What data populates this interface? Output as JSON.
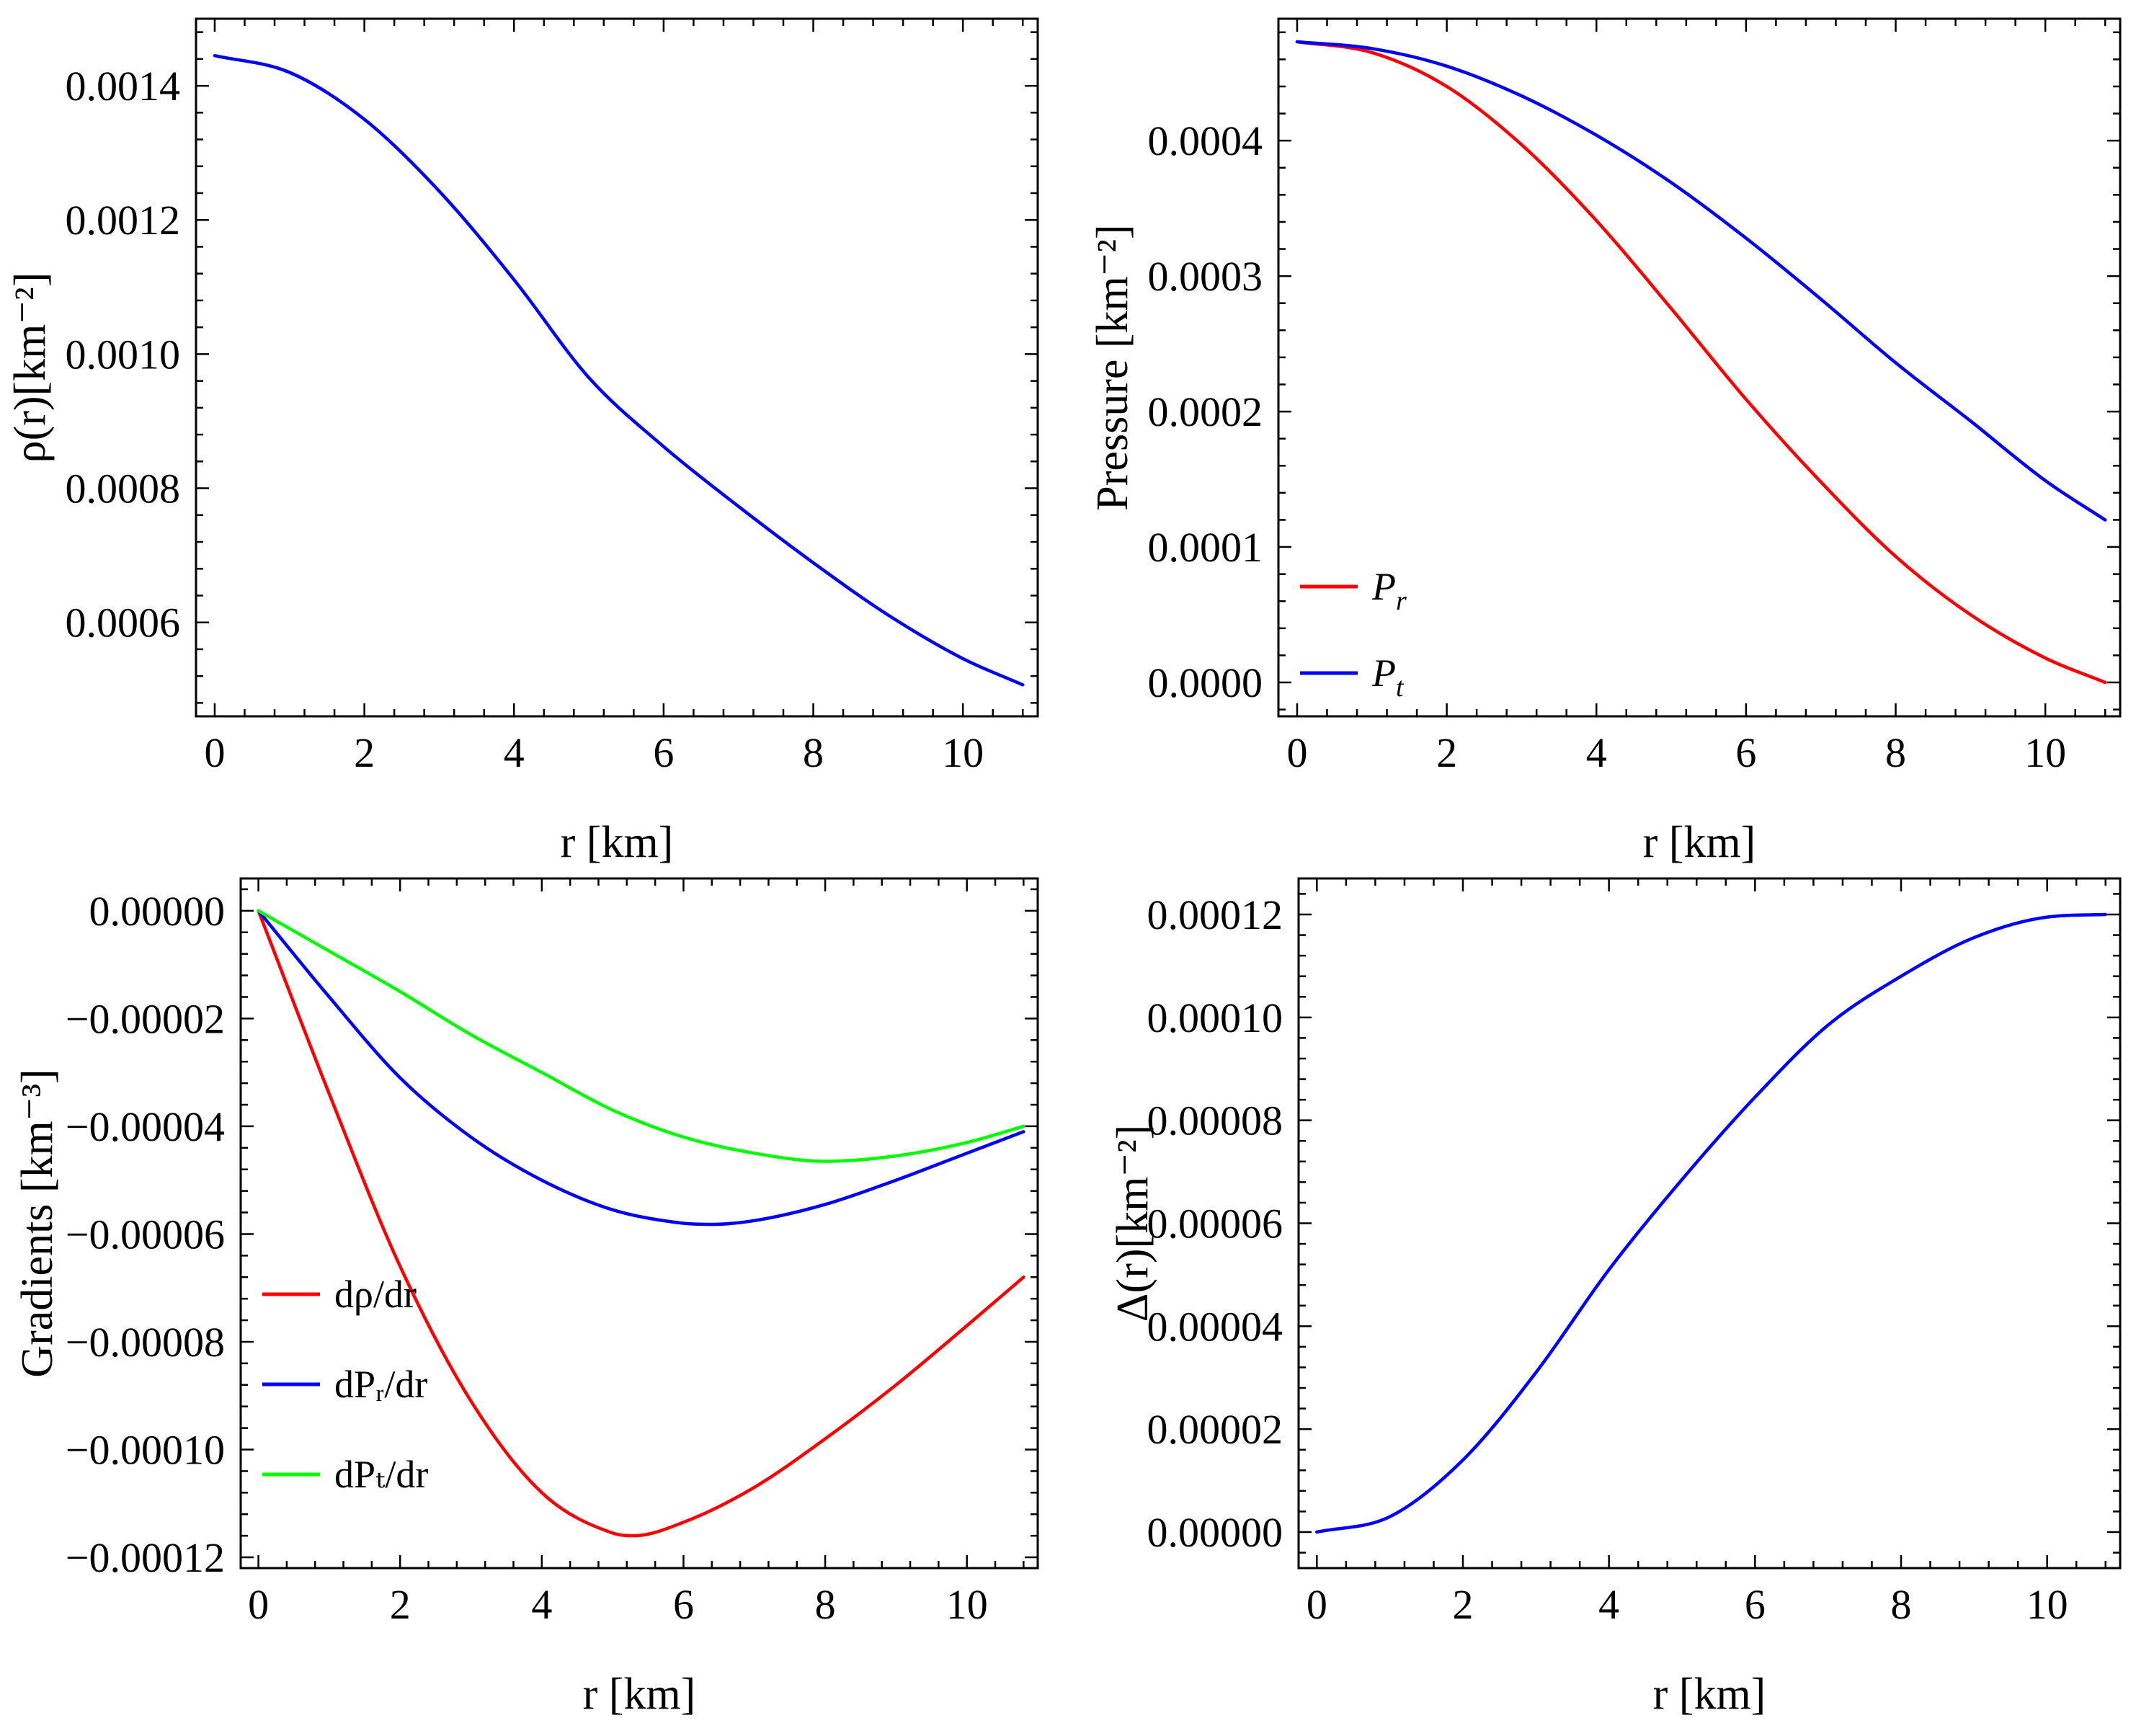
{
  "chart_data": [
    {
      "id": "density",
      "type": "line",
      "title": "",
      "xlabel": "r [km]",
      "ylabel": "ρ(r)[km⁻²]",
      "xlim": [
        -0.25,
        11.0
      ],
      "ylim": [
        0.00046,
        0.0015
      ],
      "xticks": [
        0,
        2,
        4,
        6,
        8,
        10
      ],
      "xtick_labels": [
        "0",
        "2",
        "4",
        "6",
        "8",
        "10"
      ],
      "yticks": [
        0.0006,
        0.0008,
        0.001,
        0.0012,
        0.0014
      ],
      "ytick_labels": [
        "0.0006",
        "0.0008",
        "0.0010",
        "0.0012",
        "0.0014"
      ],
      "legend": null,
      "series": [
        {
          "name": "ρ",
          "color": "#0000ff",
          "x": [
            0,
            1,
            2,
            3,
            4,
            5,
            6,
            7,
            8,
            9,
            10,
            10.8
          ],
          "y": [
            0.001445,
            0.00142,
            0.00135,
            0.001243,
            0.001111,
            0.000965,
            0.000862,
            0.000773,
            0.000689,
            0.000611,
            0.000546,
            0.000507
          ]
        }
      ]
    },
    {
      "id": "pressure",
      "type": "line",
      "title": "",
      "xlabel": "r [km]",
      "ylabel": "Pressure [km⁻²]",
      "xlim": [
        -0.25,
        11.0
      ],
      "ylim": [
        -2.5e-05,
        0.00049
      ],
      "xticks": [
        0,
        2,
        4,
        6,
        8,
        10
      ],
      "xtick_labels": [
        "0",
        "2",
        "4",
        "6",
        "8",
        "10"
      ],
      "yticks": [
        0.0,
        0.0001,
        0.0002,
        0.0003,
        0.0004
      ],
      "ytick_labels": [
        "0.0000",
        "0.0001",
        "0.0002",
        "0.0003",
        "0.0004"
      ],
      "legend": "bottom-left",
      "series": [
        {
          "name": "P",
          "subscript": "r",
          "color": "#ff0000",
          "x": [
            0,
            1,
            2,
            3,
            4,
            5,
            6,
            7,
            8,
            9,
            10,
            10.8
          ],
          "y": [
            0.000473,
            0.000465,
            0.00044,
            0.000397,
            0.000341,
            0.000276,
            0.000209,
            0.000148,
            9.3e-05,
            5e-05,
            1.8e-05,
            0.0
          ]
        },
        {
          "name": "P",
          "subscript": "t",
          "color": "#0000ff",
          "x": [
            0,
            1,
            2,
            3,
            4,
            5,
            6,
            7,
            8,
            9,
            10,
            10.8
          ],
          "y": [
            0.000473,
            0.000468,
            0.000455,
            0.000433,
            0.000404,
            0.000369,
            0.000328,
            0.000283,
            0.000236,
            0.000193,
            0.000149,
            0.00012
          ]
        }
      ]
    },
    {
      "id": "gradients",
      "type": "line",
      "title": "",
      "xlabel": "r [km]",
      "ylabel": "Gradients [km⁻³]",
      "xlim": [
        -0.25,
        11.0
      ],
      "ylim": [
        -0.000122,
        6e-06
      ],
      "xticks": [
        0,
        2,
        4,
        6,
        8,
        10
      ],
      "xtick_labels": [
        "0",
        "2",
        "4",
        "6",
        "8",
        "10"
      ],
      "yticks": [
        0.0,
        -2e-05,
        -4e-05,
        -6e-05,
        -8e-05,
        -0.0001,
        -0.00012
      ],
      "ytick_labels": [
        "0.00000",
        "−0.00002",
        "−0.00004",
        "−0.00006",
        "−0.00008",
        "−0.00010",
        "−0.00012"
      ],
      "legend": "bottom-left",
      "series": [
        {
          "name": "dρ/dr",
          "color": "#ff0000",
          "x": [
            0,
            1,
            2,
            3,
            4,
            5,
            5.3,
            6,
            7,
            8,
            9,
            10,
            10.8
          ],
          "y": [
            0.0,
            -3.4e-05,
            -6.6e-05,
            -9.1e-05,
            -0.000108,
            -0.0001155,
            -0.000116,
            -0.0001135,
            -0.000107,
            -9.8e-05,
            -8.8e-05,
            -7.7e-05,
            -6.8e-05
          ]
        },
        {
          "name": "dPᵣ/dr",
          "color": "#0000ff",
          "x": [
            0,
            1,
            2,
            3,
            4,
            5,
            6,
            6.4,
            7,
            8,
            9,
            10,
            10.8
          ],
          "y": [
            0.0,
            -1.6e-05,
            -3.1e-05,
            -4.2e-05,
            -5e-05,
            -5.55e-05,
            -5.8e-05,
            -5.82e-05,
            -5.75e-05,
            -5.45e-05,
            -5e-05,
            -4.5e-05,
            -4.1e-05
          ]
        },
        {
          "name": "dPₜ/dr",
          "color": "#00ff00",
          "x": [
            0,
            1,
            2,
            3,
            4,
            5,
            6,
            7,
            8,
            9,
            10,
            10.8
          ],
          "y": [
            0.0,
            -7.5e-06,
            -1.5e-05,
            -2.3e-05,
            -3e-05,
            -3.7e-05,
            -4.2e-05,
            -4.5e-05,
            -4.65e-05,
            -4.55e-05,
            -4.3e-05,
            -4e-05
          ]
        }
      ]
    },
    {
      "id": "anisotropy",
      "type": "line",
      "title": "",
      "xlabel": "r [km]",
      "ylabel": "Δ(r)[km⁻²]",
      "xlim": [
        -0.25,
        11.0
      ],
      "ylim": [
        -7e-06,
        0.000127
      ],
      "xticks": [
        0,
        2,
        4,
        6,
        8,
        10
      ],
      "xtick_labels": [
        "0",
        "2",
        "4",
        "6",
        "8",
        "10"
      ],
      "yticks": [
        0.0,
        2e-05,
        4e-05,
        6e-05,
        8e-05,
        0.0001,
        0.00012
      ],
      "ytick_labels": [
        "0.00000",
        "0.00002",
        "0.00004",
        "0.00006",
        "0.00008",
        "0.00010",
        "0.00012"
      ],
      "legend": null,
      "series": [
        {
          "name": "Δ",
          "color": "#0000ff",
          "x": [
            0,
            1,
            2,
            3,
            4,
            5,
            6,
            7,
            8,
            9,
            10,
            10.8
          ],
          "y": [
            0.0,
            3e-06,
            1.4e-05,
            3.1e-05,
            5.1e-05,
            6.85e-05,
            8.45e-05,
            9.85e-05,
            0.000108,
            0.0001155,
            0.0001195,
            0.00012
          ]
        }
      ]
    }
  ]
}
